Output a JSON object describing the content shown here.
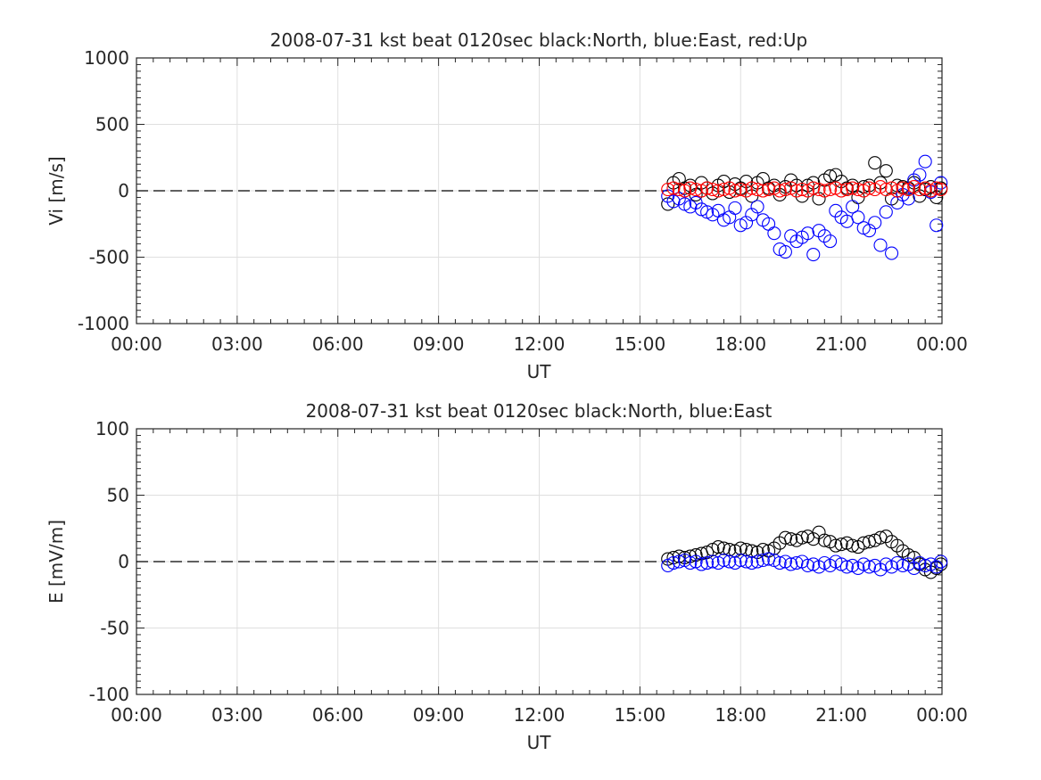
{
  "chart_data": [
    {
      "type": "scatter",
      "title": "2008-07-31 kst beat 0120sec black:North, blue:East, red:Up",
      "xlabel": "UT",
      "ylabel": "Vi [m/s]",
      "xlim": [
        "00:00",
        "24:00"
      ],
      "ylim": [
        -1000,
        1000
      ],
      "x_tick_labels": [
        "00:00",
        "03:00",
        "06:00",
        "09:00",
        "12:00",
        "15:00",
        "18:00",
        "21:00",
        "00:00"
      ],
      "y_tick_labels": [
        "-1000",
        "-500",
        "0",
        "500",
        "1000"
      ],
      "y_ticks": [
        -1000,
        -500,
        0,
        500,
        1000
      ],
      "grid": true,
      "marker": "open-circle",
      "reference_line": {
        "y": 0,
        "style": "dashed",
        "color": "#000000"
      },
      "series": [
        {
          "name": "North",
          "color": "#000000",
          "x": [
            "15:50",
            "16:00",
            "16:10",
            "16:20",
            "16:30",
            "16:40",
            "16:50",
            "17:00",
            "17:10",
            "17:20",
            "17:30",
            "17:40",
            "17:50",
            "18:00",
            "18:10",
            "18:20",
            "18:30",
            "18:40",
            "18:50",
            "19:00",
            "19:10",
            "19:20",
            "19:30",
            "19:40",
            "19:50",
            "20:00",
            "20:10",
            "20:20",
            "20:30",
            "20:40",
            "20:50",
            "21:00",
            "21:10",
            "21:20",
            "21:30",
            "21:40",
            "21:50",
            "22:00",
            "22:10",
            "22:20",
            "22:30",
            "22:40",
            "22:50",
            "23:00",
            "23:10",
            "23:20",
            "23:30",
            "23:40",
            "23:50",
            "23:58"
          ],
          "y": [
            -100,
            60,
            90,
            20,
            40,
            -30,
            60,
            20,
            -20,
            40,
            70,
            -10,
            50,
            20,
            70,
            -40,
            60,
            90,
            20,
            40,
            -30,
            30,
            80,
            40,
            -40,
            40,
            60,
            -60,
            80,
            110,
            120,
            70,
            20,
            40,
            -50,
            30,
            40,
            210,
            60,
            150,
            -60,
            40,
            30,
            20,
            60,
            -40,
            10,
            30,
            -50,
            20
          ]
        },
        {
          "name": "East",
          "color": "#0000ff",
          "x": [
            "15:50",
            "16:00",
            "16:10",
            "16:20",
            "16:30",
            "16:40",
            "16:50",
            "17:00",
            "17:10",
            "17:20",
            "17:30",
            "17:40",
            "17:50",
            "18:00",
            "18:10",
            "18:20",
            "18:30",
            "18:40",
            "18:50",
            "19:00",
            "19:10",
            "19:20",
            "19:30",
            "19:40",
            "19:50",
            "20:00",
            "20:10",
            "20:20",
            "20:30",
            "20:40",
            "20:50",
            "21:00",
            "21:10",
            "21:20",
            "21:30",
            "21:40",
            "21:50",
            "22:00",
            "22:10",
            "22:20",
            "22:30",
            "22:40",
            "22:50",
            "23:00",
            "23:10",
            "23:20",
            "23:30",
            "23:40",
            "23:50",
            "23:58"
          ],
          "y": [
            -40,
            -80,
            -60,
            -100,
            -120,
            -90,
            -140,
            -160,
            -180,
            -150,
            -220,
            -200,
            -130,
            -260,
            -240,
            -180,
            -120,
            -220,
            -250,
            -320,
            -440,
            -460,
            -340,
            -380,
            -350,
            -320,
            -480,
            -300,
            -340,
            -380,
            -150,
            -200,
            -230,
            -120,
            -200,
            -280,
            -300,
            -240,
            -410,
            -160,
            -470,
            -90,
            -30,
            -60,
            80,
            120,
            220,
            -10,
            -260,
            60
          ]
        },
        {
          "name": "Up",
          "color": "#ff0000",
          "x": [
            "15:50",
            "16:00",
            "16:10",
            "16:20",
            "16:30",
            "16:40",
            "16:50",
            "17:00",
            "17:10",
            "17:20",
            "17:30",
            "17:40",
            "17:50",
            "18:00",
            "18:10",
            "18:20",
            "18:30",
            "18:40",
            "18:50",
            "19:00",
            "19:10",
            "19:20",
            "19:30",
            "19:40",
            "19:50",
            "20:00",
            "20:10",
            "20:20",
            "20:30",
            "20:40",
            "20:50",
            "21:00",
            "21:10",
            "21:20",
            "21:30",
            "21:40",
            "21:50",
            "22:00",
            "22:10",
            "22:20",
            "22:30",
            "22:40",
            "22:50",
            "23:00",
            "23:10",
            "23:20",
            "23:30",
            "23:40",
            "23:50",
            "23:58"
          ],
          "y": [
            10,
            20,
            10,
            0,
            20,
            10,
            0,
            20,
            10,
            0,
            10,
            20,
            0,
            10,
            0,
            20,
            10,
            0,
            10,
            20,
            0,
            10,
            20,
            0,
            10,
            0,
            20,
            10,
            0,
            10,
            20,
            0,
            10,
            20,
            10,
            0,
            20,
            10,
            30,
            10,
            20,
            0,
            20,
            10,
            30,
            10,
            20,
            0,
            20,
            10
          ]
        }
      ]
    },
    {
      "type": "scatter",
      "title": "2008-07-31 kst beat 0120sec black:North, blue:East",
      "xlabel": "UT",
      "ylabel": "E [mV/m]",
      "xlim": [
        "00:00",
        "24:00"
      ],
      "ylim": [
        -100,
        100
      ],
      "x_tick_labels": [
        "00:00",
        "03:00",
        "06:00",
        "09:00",
        "12:00",
        "15:00",
        "18:00",
        "21:00",
        "00:00"
      ],
      "y_tick_labels": [
        "-100",
        "-50",
        "0",
        "50",
        "100"
      ],
      "y_ticks": [
        -100,
        -50,
        0,
        50,
        100
      ],
      "grid": true,
      "marker": "open-circle",
      "reference_line": {
        "y": 0,
        "style": "dashed",
        "color": "#000000"
      },
      "series": [
        {
          "name": "North",
          "color": "#000000",
          "x": [
            "15:50",
            "16:00",
            "16:10",
            "16:20",
            "16:30",
            "16:40",
            "16:50",
            "17:00",
            "17:10",
            "17:20",
            "17:30",
            "17:40",
            "17:50",
            "18:00",
            "18:10",
            "18:20",
            "18:30",
            "18:40",
            "18:50",
            "19:00",
            "19:10",
            "19:20",
            "19:30",
            "19:40",
            "19:50",
            "20:00",
            "20:10",
            "20:20",
            "20:30",
            "20:40",
            "20:50",
            "21:00",
            "21:10",
            "21:20",
            "21:30",
            "21:40",
            "21:50",
            "22:00",
            "22:10",
            "22:20",
            "22:30",
            "22:40",
            "22:50",
            "23:00",
            "23:10",
            "23:20",
            "23:30",
            "23:40",
            "23:50",
            "23:58"
          ],
          "y": [
            2,
            3,
            4,
            3,
            4,
            5,
            6,
            7,
            9,
            11,
            10,
            9,
            8,
            10,
            9,
            8,
            7,
            9,
            8,
            10,
            14,
            18,
            17,
            16,
            18,
            19,
            17,
            22,
            16,
            15,
            12,
            13,
            14,
            12,
            11,
            14,
            15,
            16,
            18,
            19,
            15,
            12,
            8,
            5,
            3,
            -2,
            -6,
            -8,
            -5,
            -2
          ]
        },
        {
          "name": "East",
          "color": "#0000ff",
          "x": [
            "15:50",
            "16:00",
            "16:10",
            "16:20",
            "16:30",
            "16:40",
            "16:50",
            "17:00",
            "17:10",
            "17:20",
            "17:30",
            "17:40",
            "17:50",
            "18:00",
            "18:10",
            "18:20",
            "18:30",
            "18:40",
            "18:50",
            "19:00",
            "19:10",
            "19:20",
            "19:30",
            "19:40",
            "19:50",
            "20:00",
            "20:10",
            "20:20",
            "20:30",
            "20:40",
            "20:50",
            "21:00",
            "21:10",
            "21:20",
            "21:30",
            "21:40",
            "21:50",
            "22:00",
            "22:10",
            "22:20",
            "22:30",
            "22:40",
            "22:50",
            "23:00",
            "23:10",
            "23:20",
            "23:30",
            "23:40",
            "23:50",
            "23:58"
          ],
          "y": [
            -3,
            -1,
            0,
            1,
            -1,
            0,
            -2,
            -1,
            0,
            -1,
            1,
            0,
            -1,
            1,
            0,
            -1,
            0,
            1,
            2,
            1,
            -1,
            0,
            -2,
            -1,
            0,
            -3,
            -2,
            -4,
            -1,
            -3,
            0,
            -2,
            -4,
            -3,
            -5,
            -2,
            -4,
            -3,
            -6,
            -2,
            -4,
            -1,
            -3,
            -2,
            -5,
            -1,
            -3,
            -2,
            -4,
            0
          ]
        }
      ]
    }
  ]
}
